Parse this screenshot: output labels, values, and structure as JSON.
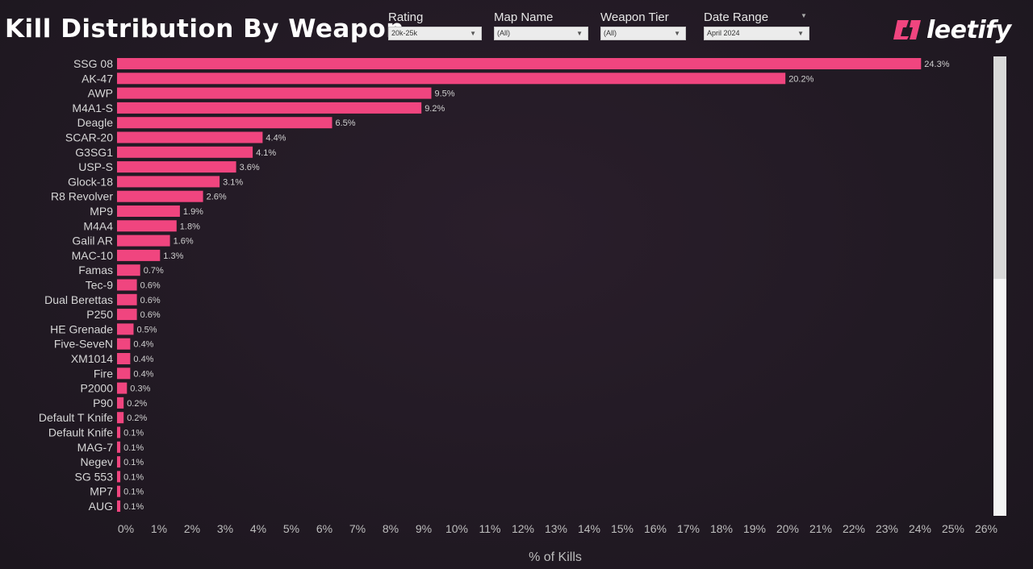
{
  "header": {
    "title": "Kill Distribution By Weapon",
    "logo_text": "leetify"
  },
  "filters": [
    {
      "label": "Rating",
      "value": "20k-25k"
    },
    {
      "label": "Map Name",
      "value": "(All)"
    },
    {
      "label": "Weapon Tier",
      "value": "(All)"
    },
    {
      "label": "Date Range",
      "value": "April 2024"
    }
  ],
  "colors": {
    "bar": "#f0457f",
    "logo": "#f0457f"
  },
  "chart_data": {
    "type": "bar",
    "orientation": "horizontal",
    "categories": [
      "SSG 08",
      "AK-47",
      "AWP",
      "M4A1-S",
      "Deagle",
      "SCAR-20",
      "G3SG1",
      "USP-S",
      "Glock-18",
      "R8 Revolver",
      "MP9",
      "M4A4",
      "Galil AR",
      "MAC-10",
      "Famas",
      "Tec-9",
      "Dual Berettas",
      "P250",
      "HE Grenade",
      "Five-SeveN",
      "XM1014",
      "Fire",
      "P2000",
      "P90",
      "Default T Knife",
      "Default Knife",
      "MAG-7",
      "Negev",
      "SG 553",
      "MP7",
      "AUG"
    ],
    "values": [
      24.3,
      20.2,
      9.5,
      9.2,
      6.5,
      4.4,
      4.1,
      3.6,
      3.1,
      2.6,
      1.9,
      1.8,
      1.6,
      1.3,
      0.7,
      0.6,
      0.6,
      0.6,
      0.5,
      0.4,
      0.4,
      0.4,
      0.3,
      0.2,
      0.2,
      0.1,
      0.1,
      0.1,
      0.1,
      0.1,
      0.1
    ],
    "value_labels": [
      "24.3%",
      "20.2%",
      "9.5%",
      "9.2%",
      "6.5%",
      "4.4%",
      "4.1%",
      "3.6%",
      "3.1%",
      "2.6%",
      "1.9%",
      "1.8%",
      "1.6%",
      "1.3%",
      "0.7%",
      "0.6%",
      "0.6%",
      "0.6%",
      "0.5%",
      "0.4%",
      "0.4%",
      "0.4%",
      "0.3%",
      "0.2%",
      "0.2%",
      "0.1%",
      "0.1%",
      "0.1%",
      "0.1%",
      "0.1%",
      "0.1%"
    ],
    "xlabel": "% of Kills",
    "xlim": [
      0,
      26
    ],
    "x_ticks": [
      "0%",
      "1%",
      "2%",
      "3%",
      "4%",
      "5%",
      "6%",
      "7%",
      "8%",
      "9%",
      "10%",
      "11%",
      "12%",
      "13%",
      "14%",
      "15%",
      "16%",
      "17%",
      "18%",
      "19%",
      "20%",
      "21%",
      "22%",
      "23%",
      "24%",
      "25%",
      "26%"
    ],
    "grid": false
  }
}
